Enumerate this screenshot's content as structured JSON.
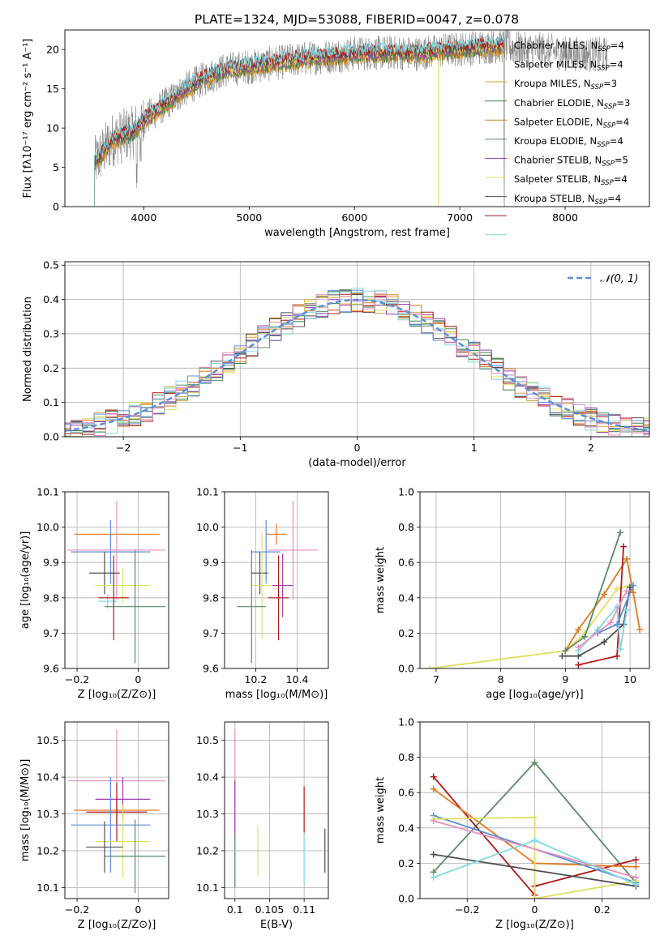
{
  "figure_title": "PLATE=1324, MJD=53088, FIBERID=0047, z=0.078",
  "colors": {
    "Chabrier MILES": "#e0a030",
    "Salpeter MILES": "#3a7a4a",
    "Kroupa MILES": "#e07b1f",
    "Chabrier ELODIE": "#5a8a6a",
    "Salpeter ELODIE": "#9a3ab0",
    "Kroupa ELODIE": "#e0e060",
    "Chabrier STELIB": "#505050",
    "Salpeter STELIB": "#b01818",
    "Kroupa STELIB": "#80d8e0",
    "normal": "#5b8fd6",
    "pink": "#e890c0"
  },
  "chart_data": [
    {
      "id": "spectrum",
      "type": "line",
      "title": "PLATE=1324, MJD=53088, FIBERID=0047, z=0.078",
      "xlabel": "wavelength [Angstrom, rest frame]",
      "ylabel": "Flux [fλ10⁻¹⁷ erg cm⁻² s⁻¹ A⁻¹]",
      "xlim": [
        3250,
        8800
      ],
      "ylim": [
        0,
        22.5
      ],
      "xticks": [
        4000,
        5000,
        6000,
        7000,
        8000
      ],
      "yticks": [
        0,
        5,
        10,
        15,
        20
      ],
      "grid": false,
      "legend_position": "right",
      "legend": [
        {
          "label": "Chabrier MILES, N",
          "sub": "SSP",
          "tail": "=4"
        },
        {
          "label": "Salpeter MILES, N",
          "sub": "SSP",
          "tail": "=4"
        },
        {
          "label": "Kroupa MILES, N",
          "sub": "SSP",
          "tail": "=3"
        },
        {
          "label": "Chabrier ELODIE, N",
          "sub": "SSP",
          "tail": "=3"
        },
        {
          "label": "Salpeter ELODIE, N",
          "sub": "SSP",
          "tail": "=4"
        },
        {
          "label": "Kroupa ELODIE, N",
          "sub": "SSP",
          "tail": "=4"
        },
        {
          "label": "Chabrier STELIB, N",
          "sub": "SSP",
          "tail": "=5"
        },
        {
          "label": "Salpeter STELIB, N",
          "sub": "SSP",
          "tail": "=4"
        },
        {
          "label": "Kroupa STELIB, N",
          "sub": "SSP",
          "tail": "=4"
        }
      ],
      "series_keys": [
        "Chabrier MILES",
        "Salpeter MILES",
        "Kroupa MILES",
        "Chabrier ELODIE",
        "Salpeter ELODIE",
        "Kroupa ELODIE",
        "Chabrier STELIB",
        "Salpeter STELIB",
        "Kroupa STELIB"
      ],
      "continuum": [
        [
          3530,
          5.5
        ],
        [
          3700,
          8.5
        ],
        [
          3900,
          9.5
        ],
        [
          4000,
          11
        ],
        [
          4200,
          13
        ],
        [
          4400,
          15
        ],
        [
          4600,
          16.5
        ],
        [
          4800,
          17.5
        ],
        [
          5000,
          17.8
        ],
        [
          5200,
          18.2
        ],
        [
          5500,
          18.8
        ],
        [
          5800,
          19.2
        ],
        [
          6000,
          19.5
        ],
        [
          6300,
          19.6
        ],
        [
          6600,
          19.5
        ],
        [
          6900,
          20
        ],
        [
          7200,
          20.3
        ],
        [
          7420,
          20.5
        ],
        [
          7600,
          20
        ],
        [
          7800,
          20
        ],
        [
          8000,
          19.5
        ],
        [
          8200,
          19.4
        ],
        [
          8400,
          19.4
        ]
      ],
      "model_range": [
        3530,
        7420
      ]
    },
    {
      "id": "residuals",
      "type": "histogram",
      "xlabel": "(data-model)/error",
      "ylabel": "Normed distribution",
      "xlim": [
        -2.5,
        2.5
      ],
      "ylim": [
        0,
        0.51
      ],
      "xticks": [
        -2,
        -1,
        0,
        1,
        2
      ],
      "yticks": [
        0.0,
        0.1,
        0.2,
        0.3,
        0.4,
        0.5
      ],
      "grid": true,
      "legend_position": "top-right",
      "legend": {
        "label": "𝒩(0, 1)"
      }
    },
    {
      "id": "age-vs-Z",
      "type": "scatter",
      "xlabel": "Z [log₁₀(Z/Z⊙)]",
      "ylabel": "age  [log₁₀(age/yr)]",
      "xlim": [
        -0.24,
        0.1
      ],
      "ylim": [
        9.6,
        10.1
      ],
      "xticks": [
        -0.2,
        0.0
      ],
      "yticks": [
        9.6,
        9.7,
        9.8,
        9.9,
        10.0,
        10.1
      ],
      "grid": true,
      "points": [
        {
          "s": "Kroupa MILES",
          "x": -0.07,
          "y": 9.98,
          "xerr": 0.14,
          "yerr": 0
        },
        {
          "s": "normal",
          "x": -0.09,
          "y": 9.93,
          "xerr": 0.13,
          "yerr": 0.09
        },
        {
          "s": "pink",
          "x": -0.07,
          "y": 9.935,
          "xerr": 0.16,
          "yerr": 0.14
        },
        {
          "s": "Chabrier STELIB",
          "x": -0.11,
          "y": 9.87,
          "xerr": 0.05,
          "yerr": 0.06
        },
        {
          "s": "Kroupa ELODIE",
          "x": -0.05,
          "y": 9.835,
          "xerr": 0.09,
          "yerr": 0.05
        },
        {
          "s": "Kroupa STELIB",
          "x": -0.1,
          "y": 9.79,
          "xerr": 0.03,
          "yerr": 0.02
        },
        {
          "s": "Salpeter STELIB",
          "x": -0.08,
          "y": 9.8,
          "xerr": 0.05,
          "yerr": 0.12
        },
        {
          "s": "Chabrier ELODIE",
          "x": -0.01,
          "y": 9.775,
          "xerr": 0.1,
          "yerr": 0.16
        }
      ]
    },
    {
      "id": "age-vs-mass",
      "type": "scatter",
      "xlabel": "mass [log₁₀(M/M⊙)]",
      "ylabel": "",
      "xlim": [
        10.05,
        10.55
      ],
      "ylim": [
        9.6,
        10.1
      ],
      "xticks": [
        10.2,
        10.4
      ],
      "yticks": [
        9.6,
        9.7,
        9.8,
        9.9,
        10.0,
        10.1
      ],
      "grid": true,
      "points": [
        {
          "s": "Kroupa MILES",
          "x": 10.3,
          "y": 9.98,
          "xerr": 0.05,
          "yerr": 0.03
        },
        {
          "s": "normal",
          "x": 10.25,
          "y": 9.93,
          "xerr": 0.07,
          "yerr": 0.09
        },
        {
          "s": "pink",
          "x": 10.38,
          "y": 9.935,
          "xerr": 0.12,
          "yerr": 0.14
        },
        {
          "s": "Chabrier STELIB",
          "x": 10.22,
          "y": 9.87,
          "xerr": 0.04,
          "yerr": 0.06
        },
        {
          "s": "Kroupa ELODIE",
          "x": 10.23,
          "y": 9.835,
          "xerr": 0.05,
          "yerr": 0.15
        },
        {
          "s": "Salpeter ELODIE",
          "x": 10.33,
          "y": 9.835,
          "xerr": 0.05,
          "yerr": 0.09
        },
        {
          "s": "Salpeter STELIB",
          "x": 10.31,
          "y": 9.8,
          "xerr": 0.05,
          "yerr": 0.12
        },
        {
          "s": "Chabrier ELODIE",
          "x": 10.18,
          "y": 9.775,
          "xerr": 0.07,
          "yerr": 0.16
        }
      ]
    },
    {
      "id": "weight-vs-age",
      "type": "line",
      "xlabel": "age  [log₁₀(age/yr)]",
      "ylabel": "mass weight",
      "xlim": [
        6.75,
        10.3
      ],
      "ylim": [
        0,
        1
      ],
      "xticks": [
        7,
        8,
        9,
        10
      ],
      "yticks": [
        0.0,
        0.2,
        0.4,
        0.6,
        0.8,
        1.0
      ],
      "grid": true,
      "series": [
        {
          "s": "Kroupa ELODIE",
          "x": [
            6.9,
            9.0,
            9.3,
            9.8,
            10.0
          ],
          "y": [
            0.0,
            0.1,
            0.2,
            0.45,
            0.47
          ]
        },
        {
          "s": "Kroupa MILES",
          "x": [
            9.0,
            9.2,
            9.6,
            9.95,
            10.05,
            10.15
          ],
          "y": [
            0.1,
            0.22,
            0.42,
            0.62,
            0.43,
            0.22
          ]
        },
        {
          "s": "Chabrier ELODIE",
          "x": [
            9.0,
            9.3,
            9.85
          ],
          "y": [
            0.1,
            0.18,
            0.77
          ]
        },
        {
          "s": "Salpeter STELIB",
          "x": [
            9.2,
            9.8,
            9.9
          ],
          "y": [
            0.02,
            0.07,
            0.69
          ]
        },
        {
          "s": "Chabrier STELIB",
          "x": [
            8.95,
            9.2,
            9.6,
            9.9,
            10.0
          ],
          "y": [
            0.07,
            0.07,
            0.15,
            0.25,
            0.46
          ]
        },
        {
          "s": "Kroupa STELIB",
          "x": [
            9.2,
            9.5,
            9.8,
            9.85,
            9.95
          ],
          "y": [
            0.1,
            0.22,
            0.35,
            0.11,
            0.33
          ]
        },
        {
          "s": "normal",
          "x": [
            9.5,
            9.8,
            10.05
          ],
          "y": [
            0.2,
            0.25,
            0.47
          ]
        },
        {
          "s": "pink",
          "x": [
            9.2,
            9.7,
            9.95
          ],
          "y": [
            0.12,
            0.26,
            0.44
          ]
        }
      ]
    },
    {
      "id": "mass-vs-Z",
      "type": "scatter",
      "xlabel": "Z [log₁₀(Z/Z⊙)]",
      "ylabel": "mass [log₁₀(M/M⊙)]",
      "xlim": [
        -0.24,
        0.1
      ],
      "ylim": [
        10.07,
        10.55
      ],
      "xticks": [
        -0.2,
        0.0
      ],
      "yticks": [
        10.1,
        10.2,
        10.3,
        10.4,
        10.5
      ],
      "grid": true,
      "points": [
        {
          "s": "pink",
          "x": -0.07,
          "y": 10.39,
          "xerr": 0.16,
          "yerr": 0.14
        },
        {
          "s": "Salpeter ELODIE",
          "x": -0.05,
          "y": 10.34,
          "xerr": 0.09,
          "yerr": 0.06
        },
        {
          "s": "Kroupa MILES",
          "x": -0.07,
          "y": 10.31,
          "xerr": 0.14,
          "yerr": 0.04
        },
        {
          "s": "Salpeter STELIB",
          "x": -0.07,
          "y": 10.305,
          "xerr": 0.1,
          "yerr": 0.08
        },
        {
          "s": "normal",
          "x": -0.09,
          "y": 10.27,
          "xerr": 0.13,
          "yerr": 0.13
        },
        {
          "s": "Kroupa ELODIE",
          "x": -0.05,
          "y": 10.225,
          "xerr": 0.09,
          "yerr": 0.1
        },
        {
          "s": "Chabrier STELIB",
          "x": -0.11,
          "y": 10.21,
          "xerr": 0.06,
          "yerr": 0.07
        },
        {
          "s": "Chabrier ELODIE",
          "x": -0.01,
          "y": 10.185,
          "xerr": 0.1,
          "yerr": 0.1
        }
      ]
    },
    {
      "id": "mass-vs-ebv",
      "type": "scatter",
      "xlabel": "E(B-V)",
      "ylabel": "",
      "xlim": [
        0.0985,
        0.1135
      ],
      "ylim": [
        10.07,
        10.55
      ],
      "xticks": [
        0.1,
        0.105,
        0.11
      ],
      "yticks": [
        10.1,
        10.2,
        10.3,
        10.4,
        10.5
      ],
      "grid": true,
      "points": [
        {
          "s": "pink",
          "x": 0.1,
          "y": 10.39,
          "xerr": 0,
          "yerr": 0.14
        },
        {
          "s": "Salpeter ELODIE",
          "x": 0.1,
          "y": 10.31,
          "xerr": 0,
          "yerr": 0.08
        },
        {
          "s": "Chabrier ELODIE",
          "x": 0.1,
          "y": 10.17,
          "xerr": 0,
          "yerr": 0.07
        },
        {
          "s": "Kroupa ELODIE",
          "x": 0.1033,
          "y": 10.2,
          "xerr": 0,
          "yerr": 0.07
        },
        {
          "s": "Salpeter STELIB",
          "x": 0.11,
          "y": 10.31,
          "xerr": 0,
          "yerr": 0.065
        },
        {
          "s": "Kroupa STELIB",
          "x": 0.11,
          "y": 10.18,
          "xerr": 0,
          "yerr": 0.07
        },
        {
          "s": "Chabrier STELIB",
          "x": 0.113,
          "y": 10.2,
          "xerr": 0,
          "yerr": 0.06
        }
      ]
    },
    {
      "id": "weight-vs-Z",
      "type": "line",
      "xlabel": "Z [log₁₀(Z/Z⊙)]",
      "ylabel": "mass weight",
      "xlim": [
        -0.34,
        0.34
      ],
      "ylim": [
        0,
        1
      ],
      "xticks": [
        -0.2,
        0.0,
        0.2
      ],
      "yticks": [
        0.0,
        0.2,
        0.4,
        0.6,
        0.8,
        1.0
      ],
      "grid": true,
      "series": [
        {
          "s": "Chabrier ELODIE",
          "x": [
            -0.3,
            0.0,
            0.3
          ],
          "y": [
            0.15,
            0.77,
            0.09
          ]
        },
        {
          "s": "Salpeter STELIB",
          "x": [
            -0.3,
            0.0,
            0.0,
            0.3
          ],
          "y": [
            0.69,
            0.02,
            0.07,
            0.22
          ]
        },
        {
          "s": "Kroupa MILES",
          "x": [
            -0.3,
            0.0,
            0.3
          ],
          "y": [
            0.62,
            0.2,
            0.18
          ]
        },
        {
          "s": "normal",
          "x": [
            -0.3,
            0.3
          ],
          "y": [
            0.47,
            0.09
          ]
        },
        {
          "s": "Kroupa ELODIE",
          "x": [
            -0.3,
            0.0,
            0.0,
            0.3
          ],
          "y": [
            0.45,
            0.46,
            0.0,
            0.1
          ]
        },
        {
          "s": "pink",
          "x": [
            -0.3,
            0.3
          ],
          "y": [
            0.44,
            0.12
          ]
        },
        {
          "s": "Chabrier STELIB",
          "x": [
            -0.3,
            0.3
          ],
          "y": [
            0.25,
            0.07
          ]
        },
        {
          "s": "Kroupa STELIB",
          "x": [
            -0.3,
            0.0,
            0.3
          ],
          "y": [
            0.12,
            0.33,
            0.08
          ]
        }
      ]
    }
  ]
}
